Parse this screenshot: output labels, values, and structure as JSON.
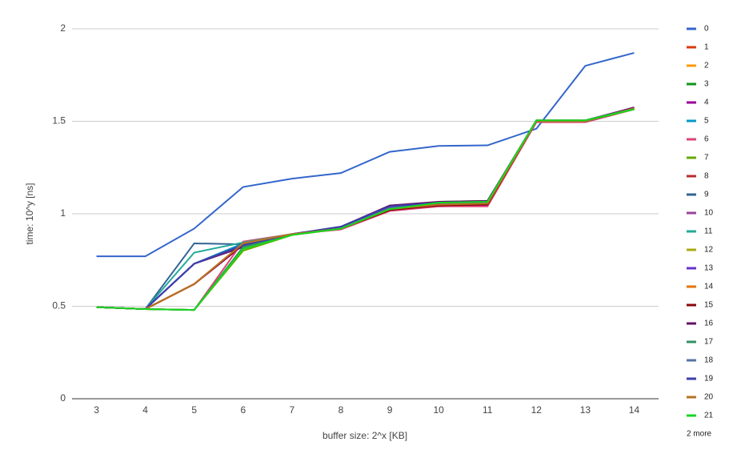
{
  "chart_data": {
    "type": "line",
    "x_label": "buffer size: 2^x [KB]",
    "y_label": "time: 10^y [ns]",
    "x": [
      3,
      4,
      5,
      6,
      7,
      8,
      9,
      10,
      11,
      12,
      13,
      14
    ],
    "xlim": [
      2.5,
      14.5
    ],
    "xticks": [
      3,
      4,
      5,
      6,
      7,
      8,
      9,
      10,
      11,
      12,
      13,
      14
    ],
    "ylim": [
      0,
      2
    ],
    "yticks": [
      0,
      0.5,
      1,
      1.5,
      2
    ],
    "grid": true,
    "legend": "right",
    "legend_more": "2 more",
    "series": [
      {
        "name": "0",
        "color": "#3366cc",
        "values": [
          0.77,
          0.77,
          0.92,
          1.145,
          1.19,
          1.22,
          1.335,
          1.367,
          1.37,
          1.46,
          1.8,
          1.87
        ]
      },
      {
        "name": "1",
        "color": "#dc3912",
        "values": [
          0.495,
          0.485,
          0.62,
          0.84,
          0.89,
          0.92,
          1.02,
          1.05,
          1.05,
          1.5,
          1.5,
          1.57
        ]
      },
      {
        "name": "2",
        "color": "#ff9900",
        "values": [
          0.495,
          0.485,
          0.62,
          0.84,
          0.89,
          0.92,
          1.02,
          1.05,
          1.05,
          1.5,
          1.5,
          1.57
        ]
      },
      {
        "name": "3",
        "color": "#109618",
        "values": [
          0.495,
          0.485,
          0.48,
          0.82,
          0.89,
          0.925,
          1.03,
          1.06,
          1.065,
          1.505,
          1.505,
          1.57
        ]
      },
      {
        "name": "4",
        "color": "#990099",
        "values": [
          0.495,
          0.485,
          0.62,
          0.83,
          0.89,
          0.925,
          1.02,
          1.04,
          1.045,
          1.5,
          1.5,
          1.575
        ]
      },
      {
        "name": "5",
        "color": "#0099c6",
        "values": [
          0.495,
          0.485,
          0.73,
          0.84,
          0.89,
          0.925,
          1.03,
          1.055,
          1.06,
          1.5,
          1.5,
          1.57
        ]
      },
      {
        "name": "6",
        "color": "#dd4477",
        "values": [
          0.495,
          0.485,
          0.48,
          0.85,
          0.89,
          0.915,
          1.015,
          1.04,
          1.04,
          1.495,
          1.495,
          1.565
        ]
      },
      {
        "name": "7",
        "color": "#66aa00",
        "values": [
          0.495,
          0.485,
          0.48,
          0.8,
          0.885,
          0.92,
          1.03,
          1.065,
          1.07,
          1.5,
          1.5,
          1.565
        ]
      },
      {
        "name": "8",
        "color": "#b82e2e",
        "values": [
          0.495,
          0.485,
          0.62,
          0.84,
          0.89,
          0.92,
          1.02,
          1.05,
          1.05,
          1.5,
          1.5,
          1.57
        ]
      },
      {
        "name": "9",
        "color": "#316395",
        "values": [
          0.495,
          0.485,
          0.84,
          0.835,
          0.89,
          0.93,
          1.04,
          1.06,
          1.065,
          1.5,
          1.5,
          1.57
        ]
      },
      {
        "name": "10",
        "color": "#994499",
        "values": [
          0.495,
          0.485,
          0.73,
          0.83,
          0.89,
          0.925,
          1.03,
          1.055,
          1.06,
          1.5,
          1.5,
          1.57
        ]
      },
      {
        "name": "11",
        "color": "#22aa99",
        "values": [
          0.495,
          0.485,
          0.79,
          0.845,
          0.89,
          0.925,
          1.03,
          1.055,
          1.06,
          1.5,
          1.5,
          1.57
        ]
      },
      {
        "name": "12",
        "color": "#aaaa11",
        "values": [
          0.495,
          0.485,
          0.48,
          0.81,
          0.885,
          0.92,
          1.025,
          1.06,
          1.065,
          1.505,
          1.505,
          1.565
        ]
      },
      {
        "name": "13",
        "color": "#6633cc",
        "values": [
          0.495,
          0.485,
          0.73,
          0.83,
          0.89,
          0.925,
          1.03,
          1.05,
          1.055,
          1.5,
          1.5,
          1.57
        ]
      },
      {
        "name": "14",
        "color": "#e67300",
        "values": [
          0.495,
          0.485,
          0.62,
          0.84,
          0.89,
          0.92,
          1.02,
          1.05,
          1.05,
          1.5,
          1.5,
          1.57
        ]
      },
      {
        "name": "15",
        "color": "#8b0707",
        "values": [
          0.495,
          0.485,
          0.62,
          0.835,
          0.89,
          0.92,
          1.02,
          1.045,
          1.05,
          1.5,
          1.5,
          1.575
        ]
      },
      {
        "name": "16",
        "color": "#651067",
        "values": [
          0.495,
          0.485,
          0.73,
          0.82,
          0.89,
          0.93,
          1.045,
          1.065,
          1.07,
          1.505,
          1.505,
          1.575
        ]
      },
      {
        "name": "17",
        "color": "#329262",
        "values": [
          0.495,
          0.485,
          0.48,
          0.82,
          0.89,
          0.925,
          1.035,
          1.06,
          1.065,
          1.505,
          1.505,
          1.57
        ]
      },
      {
        "name": "18",
        "color": "#5574a6",
        "values": [
          0.495,
          0.485,
          0.73,
          0.83,
          0.89,
          0.925,
          1.035,
          1.055,
          1.06,
          1.5,
          1.5,
          1.57
        ]
      },
      {
        "name": "19",
        "color": "#3b3eac",
        "values": [
          0.495,
          0.485,
          0.73,
          0.83,
          0.89,
          0.93,
          1.04,
          1.06,
          1.065,
          1.5,
          1.5,
          1.57
        ]
      },
      {
        "name": "20",
        "color": "#b77322",
        "values": [
          0.495,
          0.485,
          0.62,
          0.84,
          0.89,
          0.92,
          1.025,
          1.05,
          1.055,
          1.5,
          1.5,
          1.57
        ]
      },
      {
        "name": "21",
        "color": "#16d620",
        "values": [
          0.495,
          0.485,
          0.48,
          0.81,
          0.885,
          0.92,
          1.025,
          1.06,
          1.065,
          1.505,
          1.505,
          1.565
        ]
      }
    ]
  }
}
